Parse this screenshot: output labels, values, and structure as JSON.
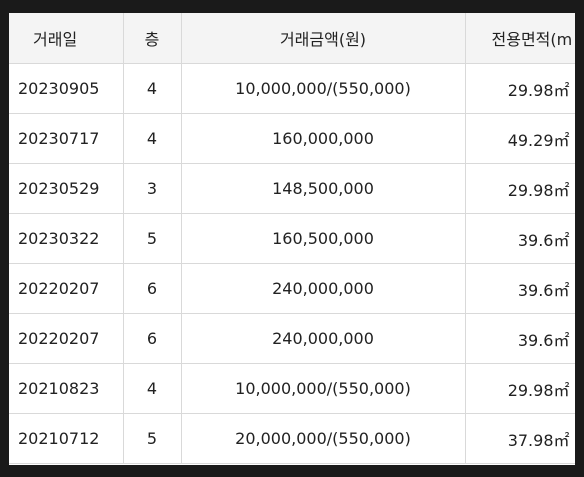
{
  "table": {
    "headers": {
      "date": "거래일",
      "floor": "층",
      "amount": "거래금액(원)",
      "area": "전용면적(m"
    },
    "rows": [
      {
        "date": "20230905",
        "floor": "4",
        "amount": "10,000,000/(550,000)",
        "area": "29.98㎡"
      },
      {
        "date": "20230717",
        "floor": "4",
        "amount": "160,000,000",
        "area": "49.29㎡"
      },
      {
        "date": "20230529",
        "floor": "3",
        "amount": "148,500,000",
        "area": "29.98㎡"
      },
      {
        "date": "20230322",
        "floor": "5",
        "amount": "160,500,000",
        "area": "39.6㎡"
      },
      {
        "date": "20220207",
        "floor": "6",
        "amount": "240,000,000",
        "area": "39.6㎡"
      },
      {
        "date": "20220207",
        "floor": "6",
        "amount": "240,000,000",
        "area": "39.6㎡"
      },
      {
        "date": "20210823",
        "floor": "4",
        "amount": "10,000,000/(550,000)",
        "area": "29.98㎡"
      },
      {
        "date": "20210712",
        "floor": "5",
        "amount": "20,000,000/(550,000)",
        "area": "37.98㎡"
      }
    ]
  }
}
